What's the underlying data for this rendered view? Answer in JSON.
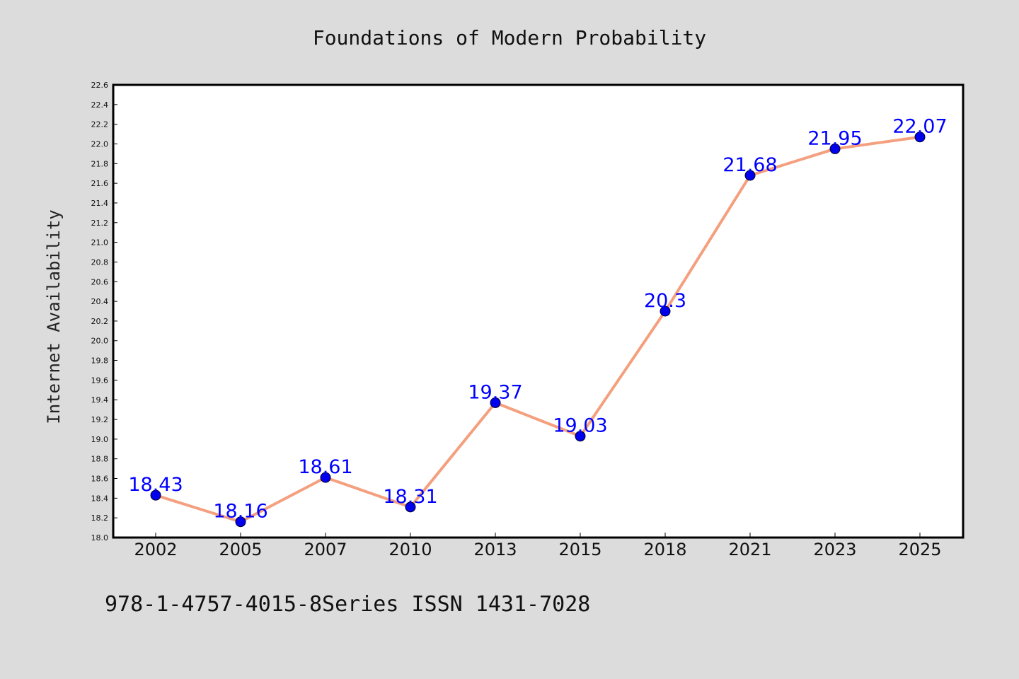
{
  "chart_data": {
    "type": "line",
    "title": "Foundations of Modern Probability",
    "xlabel": "",
    "ylabel": "Internet Availability",
    "footer": "978-1-4757-4015-8Series ISSN 1431-7028",
    "categories": [
      "2002",
      "2005",
      "2007",
      "2010",
      "2013",
      "2015",
      "2018",
      "2021",
      "2023",
      "2025"
    ],
    "series": [
      {
        "values": [
          18.43,
          18.16,
          18.61,
          18.31,
          19.37,
          19.03,
          20.3,
          21.68,
          21.95,
          22.07
        ],
        "labels": [
          "18.43",
          "18.16",
          "18.61",
          "18.31",
          "19.37",
          "19.03",
          "20.3",
          "21.68",
          "21.95",
          "22.07"
        ],
        "line_color": "#f4a07e",
        "marker_color": "#0000ee"
      }
    ],
    "ylim": [
      18.0,
      22.6
    ],
    "yticks": [
      "18.0",
      "18.2",
      "18.4",
      "18.6",
      "18.8",
      "19.0",
      "19.2",
      "19.4",
      "19.6",
      "19.8",
      "20.0",
      "20.2",
      "20.4",
      "20.6",
      "20.8",
      "21.0",
      "21.2",
      "21.4",
      "21.6",
      "21.8",
      "22.0",
      "22.2",
      "22.4",
      "22.6"
    ],
    "grid": false,
    "legend": "none",
    "background_color": "#dcdcdc",
    "plot_background": "#ffffff",
    "label_color": "#0000ff"
  }
}
